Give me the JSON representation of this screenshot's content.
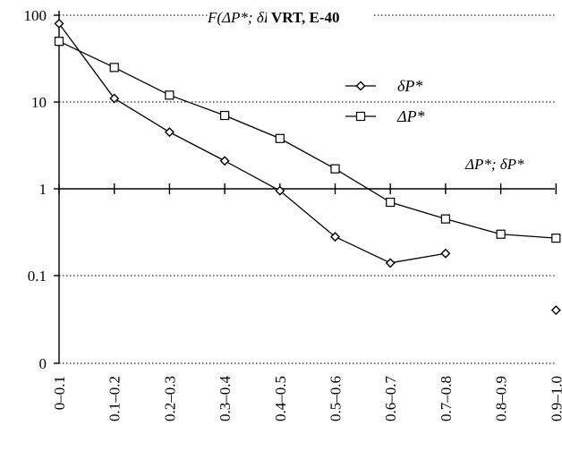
{
  "chart_data": {
    "type": "line",
    "title": "VRT, E-40",
    "ylabel": "F(ΔP*; δP*), %",
    "xlabel": "ΔP*; δP*",
    "categories": [
      "0–0.1",
      "0.1–0.2",
      "0.2–0.3",
      "0.3–0.4",
      "0.4–0.5",
      "0.5–0.6",
      "0.6–0.7",
      "0.7–0.8",
      "0.8–0.9",
      "0.9–1.0"
    ],
    "y_scale": "log",
    "y_tick_labels": [
      "0",
      "0.1",
      "1",
      "10",
      "100"
    ],
    "grid": "horizontal dotted",
    "legend_position": "top-right",
    "series": [
      {
        "name": "δP*",
        "marker": "diamond",
        "values": [
          80,
          11,
          4.5,
          2.1,
          0.95,
          0.28,
          0.14,
          0.18,
          null,
          0.04
        ]
      },
      {
        "name": "ΔP*",
        "marker": "square",
        "values": [
          50,
          25,
          12,
          7,
          3.8,
          1.7,
          0.7,
          0.45,
          0.3,
          0.27
        ]
      }
    ]
  }
}
